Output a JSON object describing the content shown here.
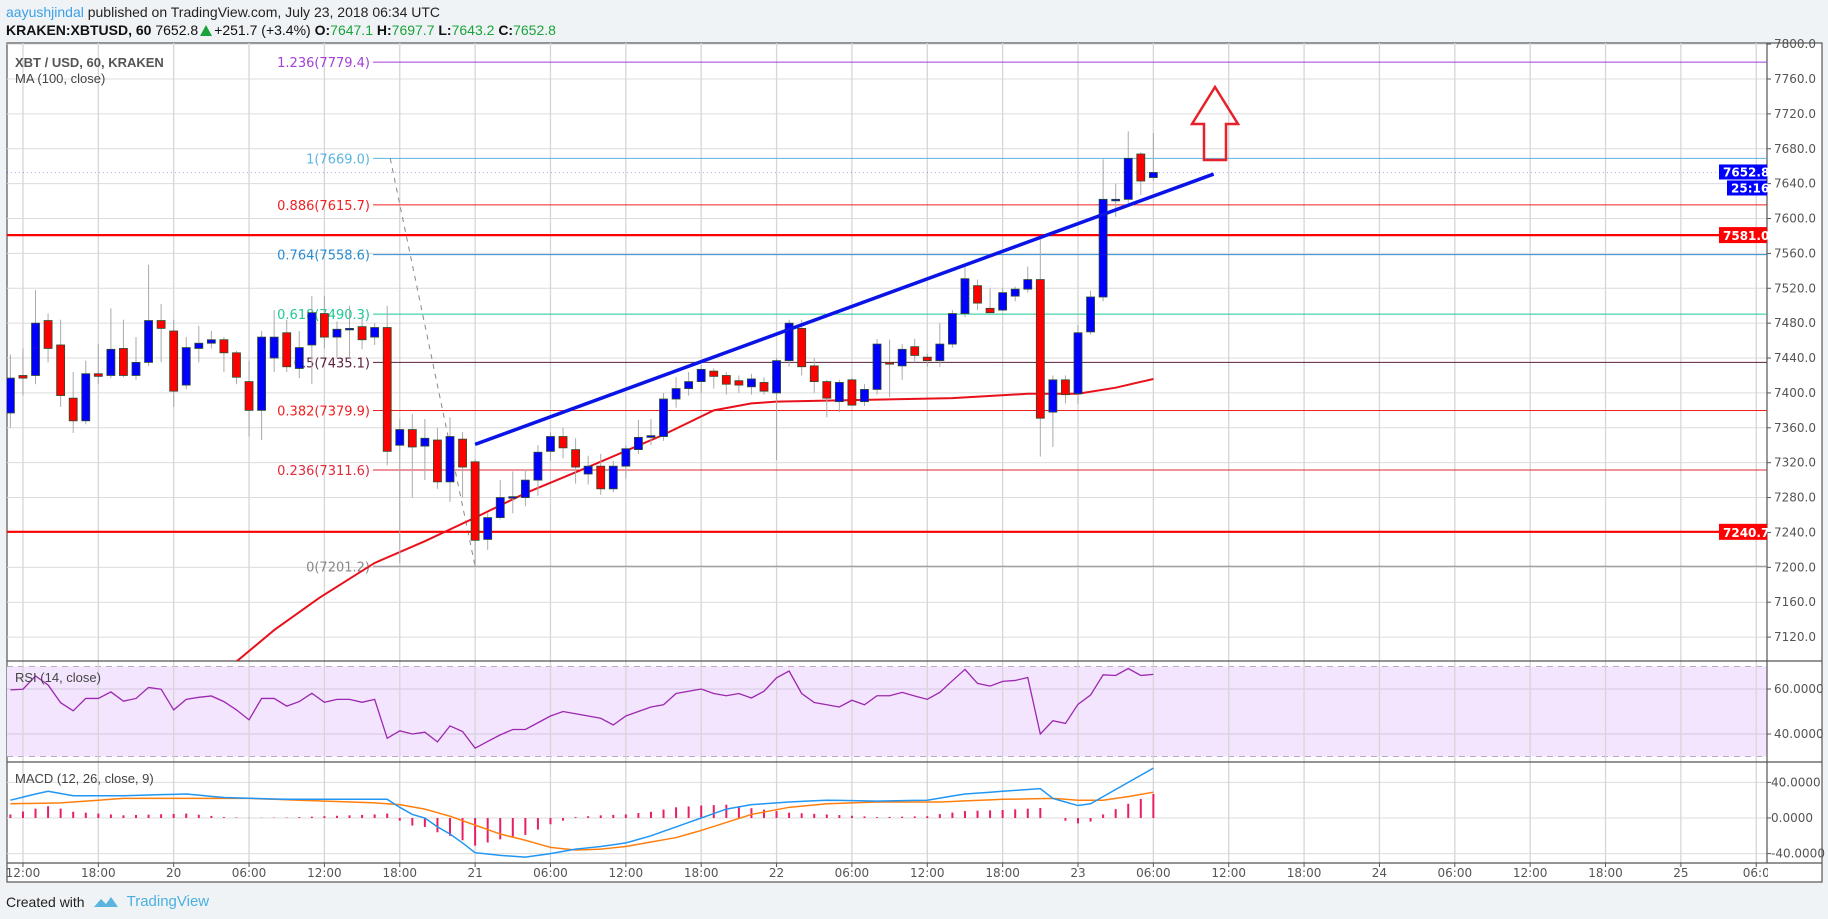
{
  "header": {
    "author": "aayushjindal",
    "published": "published on TradingView.com, July 23, 2018 06:34 UTC",
    "symbol": "KRAKEN:XBTUSD, 60",
    "last": "7652.8",
    "change": "+251.7 (+3.4%)",
    "o_label": "O:",
    "o": "7647.1",
    "h_label": "H:",
    "h": "7697.7",
    "l_label": "L:",
    "l": "7643.2",
    "c_label": "C:",
    "c": "7652.8"
  },
  "legend": {
    "title": "XBT / USD, 60, KRAKEN",
    "ma": "MA (100, close)",
    "rsi": "RSI (14, close)",
    "macd": "MACD (12, 26, close, 9)"
  },
  "footer": {
    "created_with": "Created with",
    "brand": "TradingView"
  },
  "chart_data": {
    "type": "candlestick",
    "interval": "60",
    "colors": {
      "up": "#0000ff",
      "down": "#ff0000",
      "ma": "#e8101a",
      "trend": "#0a14e6",
      "rsi": "#9c27b0",
      "macd": "#2196f3",
      "signal": "#ff7f0e",
      "hist": "#e91e63"
    },
    "time_labels": [
      "12:00",
      "18:00",
      "20",
      "06:00",
      "12:00",
      "18:00",
      "21",
      "06:00",
      "12:00",
      "18:00",
      "22",
      "06:00",
      "12:00",
      "18:00",
      "23",
      "06:00",
      "12:00",
      "18:00",
      "24",
      "06:00",
      "12:00",
      "18:00",
      "25",
      "06:0"
    ],
    "price_ticks": [
      7120,
      7160,
      7200,
      7240,
      7280,
      7320,
      7360,
      7400,
      7440,
      7480,
      7520,
      7560,
      7600,
      7640,
      7680,
      7720,
      7760,
      7800
    ],
    "ylim": [
      7092,
      7800
    ],
    "candles_ohlc": [
      [
        7377,
        7444,
        7360,
        7417
      ],
      [
        7420,
        7451,
        7397,
        7417
      ],
      [
        7420,
        7518,
        7410,
        7480
      ],
      [
        7483,
        7491,
        7435,
        7451
      ],
      [
        7455,
        7484,
        7384,
        7397
      ],
      [
        7394,
        7424,
        7354,
        7368
      ],
      [
        7368,
        7437,
        7364,
        7422
      ],
      [
        7422,
        7456,
        7410,
        7419
      ],
      [
        7420,
        7497,
        7417,
        7450
      ],
      [
        7451,
        7484,
        7418,
        7420
      ],
      [
        7420,
        7464,
        7415,
        7435
      ],
      [
        7435,
        7547,
        7431,
        7483
      ],
      [
        7483,
        7502,
        7435,
        7474
      ],
      [
        7471,
        7484,
        7384,
        7402
      ],
      [
        7409,
        7464,
        7404,
        7452
      ],
      [
        7451,
        7477,
        7435,
        7457
      ],
      [
        7457,
        7471,
        7451,
        7461
      ],
      [
        7461,
        7464,
        7424,
        7446
      ],
      [
        7446,
        7448,
        7410,
        7418
      ],
      [
        7413,
        7437,
        7350,
        7380
      ],
      [
        7380,
        7471,
        7346,
        7464
      ],
      [
        7440,
        7495,
        7424,
        7464
      ],
      [
        7469,
        7484,
        7424,
        7430
      ],
      [
        7428,
        7471,
        7417,
        7452
      ],
      [
        7455,
        7511,
        7410,
        7492
      ],
      [
        7491,
        7511,
        7451,
        7464
      ],
      [
        7464,
        7482,
        7440,
        7473
      ],
      [
        7474,
        7500,
        7440,
        7474
      ],
      [
        7476,
        7488,
        7450,
        7461
      ],
      [
        7464,
        7480,
        7455,
        7475
      ],
      [
        7475,
        7500,
        7317,
        7333
      ],
      [
        7340,
        7370,
        7205,
        7358
      ],
      [
        7358,
        7376,
        7280,
        7338
      ],
      [
        7339,
        7370,
        7300,
        7348
      ],
      [
        7346,
        7360,
        7290,
        7298
      ],
      [
        7298,
        7372,
        7275,
        7350
      ],
      [
        7347,
        7355,
        7280,
        7315
      ],
      [
        7321,
        7324,
        7201.2,
        7231
      ],
      [
        7232,
        7262,
        7220,
        7257
      ],
      [
        7257,
        7300,
        7255,
        7280
      ],
      [
        7280,
        7310,
        7262,
        7281
      ],
      [
        7280,
        7312,
        7270,
        7300
      ],
      [
        7300,
        7340,
        7282,
        7332
      ],
      [
        7333,
        7355,
        7322,
        7350
      ],
      [
        7350,
        7360,
        7325,
        7337
      ],
      [
        7335,
        7348,
        7296,
        7315
      ],
      [
        7307,
        7328,
        7295,
        7316
      ],
      [
        7316,
        7330,
        7283,
        7290
      ],
      [
        7290,
        7322,
        7286,
        7316
      ],
      [
        7316,
        7340,
        7302,
        7336
      ],
      [
        7335,
        7369,
        7330,
        7349
      ],
      [
        7349,
        7370,
        7340,
        7351
      ],
      [
        7350,
        7400,
        7345,
        7393
      ],
      [
        7393,
        7418,
        7383,
        7405
      ],
      [
        7405,
        7424,
        7397,
        7413
      ],
      [
        7413,
        7432,
        7400,
        7427
      ],
      [
        7425,
        7428,
        7405,
        7419
      ],
      [
        7420,
        7424,
        7398,
        7410
      ],
      [
        7414,
        7420,
        7400,
        7409
      ],
      [
        7407,
        7422,
        7398,
        7416
      ],
      [
        7412,
        7418,
        7398,
        7402
      ],
      [
        7400,
        7440,
        7323,
        7437
      ],
      [
        7437,
        7484,
        7430,
        7480
      ],
      [
        7474,
        7484,
        7420,
        7430
      ],
      [
        7431,
        7440,
        7400,
        7413
      ],
      [
        7413,
        7415,
        7372,
        7394
      ],
      [
        7390,
        7415,
        7378,
        7412
      ],
      [
        7415,
        7417,
        7385,
        7386
      ],
      [
        7390,
        7410,
        7385,
        7404
      ],
      [
        7404,
        7462,
        7398,
        7456
      ],
      [
        7435,
        7461,
        7395,
        7433
      ],
      [
        7431,
        7456,
        7415,
        7450
      ],
      [
        7453,
        7462,
        7435,
        7443
      ],
      [
        7441,
        7445,
        7430,
        7437
      ],
      [
        7437,
        7480,
        7430,
        7456
      ],
      [
        7456,
        7495,
        7452,
        7491
      ],
      [
        7491,
        7545,
        7487,
        7531
      ],
      [
        7523,
        7530,
        7495,
        7503
      ],
      [
        7497,
        7520,
        7492,
        7492
      ],
      [
        7495,
        7520,
        7494,
        7515
      ],
      [
        7511,
        7522,
        7505,
        7519
      ],
      [
        7519,
        7545,
        7515,
        7530
      ],
      [
        7530,
        7577,
        7327,
        7371
      ],
      [
        7378,
        7420,
        7338,
        7415
      ],
      [
        7415,
        7420,
        7388,
        7398
      ],
      [
        7399,
        7478,
        7387,
        7469
      ],
      [
        7470,
        7517,
        7467,
        7510
      ],
      [
        7510,
        7668,
        7505,
        7622
      ],
      [
        7622,
        7640,
        7602,
        7622
      ],
      [
        7622,
        7700,
        7618,
        7669
      ],
      [
        7674,
        7676,
        7627,
        7643
      ],
      [
        7647,
        7698,
        7643,
        7652.8
      ]
    ],
    "ma100_points": [
      [
        19,
        7092
      ],
      [
        22,
        7128
      ],
      [
        25.6,
        7165
      ],
      [
        30,
        7205
      ],
      [
        34,
        7230
      ],
      [
        38,
        7257
      ],
      [
        42,
        7285
      ],
      [
        47,
        7315
      ],
      [
        53,
        7352
      ],
      [
        57,
        7380
      ],
      [
        60,
        7388
      ],
      [
        62,
        7390
      ],
      [
        69,
        7392
      ],
      [
        76,
        7394
      ],
      [
        82,
        7399
      ],
      [
        86,
        7399
      ],
      [
        89,
        7406
      ],
      [
        92,
        7416
      ]
    ],
    "fib_levels": [
      {
        "ratio": "1.236",
        "price": 7779.4,
        "label": "1.236(7779.4)",
        "color": "#a23fd8"
      },
      {
        "ratio": "1",
        "price": 7669.0,
        "label": "1(7669.0)",
        "color": "#5ab4e0"
      },
      {
        "ratio": "0.886",
        "price": 7615.7,
        "label": "0.886(7615.7)",
        "color": "#f02020"
      },
      {
        "ratio": "0.764",
        "price": 7558.6,
        "label": "0.764(7558.6)",
        "color": "#2a8bd0"
      },
      {
        "ratio": "0.618",
        "price": 7490.3,
        "label": "0.618(7490.3)",
        "color": "#1fc896"
      },
      {
        "ratio": "0.5",
        "price": 7435.1,
        "label": "0.5(7435.1)",
        "color": "#5a1f3c"
      },
      {
        "ratio": "0.382",
        "price": 7379.9,
        "label": "0.382(7379.9)",
        "color": "#f02020"
      },
      {
        "ratio": "0.236",
        "price": 7311.6,
        "label": "0.236(7311.6)",
        "color": "#e02a3a"
      },
      {
        "ratio": "0",
        "price": 7201.2,
        "label": "0(7201.2)",
        "color": "#888888"
      }
    ],
    "fib_anchor": {
      "from": [
        31,
        7669.0
      ],
      "to": [
        38,
        7201.2
      ]
    },
    "horizontal_levels": [
      {
        "price": 7581.0,
        "label": "7581.0",
        "color": "#ff0000"
      },
      {
        "price": 7240.7,
        "label": "7240.7",
        "color": "#ff0000"
      }
    ],
    "trendline": {
      "from": [
        38,
        7341
      ],
      "to": [
        96.8,
        7651
      ]
    },
    "current_price": {
      "label": "7652.8",
      "countdown": "25:16",
      "price": 7652.8,
      "color": "#0000ff"
    },
    "rsi": {
      "ticks": [
        {
          "value": 60,
          "label": "60.0000"
        },
        {
          "value": 40,
          "label": "40.0000"
        }
      ],
      "bands": [
        70,
        30
      ],
      "values": [
        59.6,
        59.9,
        65.8,
        61.8,
        53.9,
        50.3,
        55.8,
        55.8,
        58.7,
        54.6,
        55.8,
        60.7,
        59.9,
        50.7,
        55.4,
        56.3,
        56.9,
        54.4,
        50.7,
        46.3,
        55.8,
        55.8,
        52.4,
        54.4,
        58.1,
        54.1,
        55.4,
        55.4,
        54.1,
        55.4,
        38.1,
        41.4,
        40.0,
        40.8,
        36.5,
        43.6,
        41.1,
        33.7,
        36.7,
        39.6,
        42,
        42,
        45,
        48,
        50,
        49,
        48,
        47,
        44,
        48,
        50,
        52,
        53,
        58,
        59,
        60,
        58,
        57,
        58,
        56,
        59,
        65,
        68,
        58,
        54,
        53,
        52,
        55,
        53,
        57,
        57,
        58.5,
        56.9,
        55.4,
        58.5,
        63.7,
        68.7,
        62.5,
        61.3,
        63.4,
        63.8,
        65.1,
        40.0,
        45.9,
        44.7,
        53.2,
        57.3,
        66.3,
        66.0,
        69.1,
        66.0,
        66.5
      ]
    },
    "macd": {
      "ticks": [
        {
          "value": 40,
          "label": "40.0000"
        },
        {
          "value": 0,
          "label": "0.0000"
        },
        {
          "value": -40,
          "label": "-40.0000"
        }
      ],
      "macd_points": [
        [
          1,
          20
        ],
        [
          3,
          27
        ],
        [
          4,
          30
        ],
        [
          6,
          25
        ],
        [
          10,
          25
        ],
        [
          15,
          27
        ],
        [
          18,
          23
        ],
        [
          23,
          21
        ],
        [
          31,
          21
        ],
        [
          32,
          12
        ],
        [
          33,
          4
        ],
        [
          34,
          0
        ],
        [
          35,
          -10
        ],
        [
          36,
          -18
        ],
        [
          37,
          -28
        ],
        [
          38,
          -39
        ],
        [
          40,
          -42
        ],
        [
          42,
          -44
        ],
        [
          44,
          -40
        ],
        [
          46,
          -35
        ],
        [
          48,
          -32
        ],
        [
          50,
          -28
        ],
        [
          52,
          -20
        ],
        [
          54,
          -10
        ],
        [
          56,
          0
        ],
        [
          58,
          10
        ],
        [
          60,
          15
        ],
        [
          63,
          18
        ],
        [
          66,
          20
        ],
        [
          70,
          19
        ],
        [
          74,
          20
        ],
        [
          77,
          27
        ],
        [
          81,
          31
        ],
        [
          83,
          33
        ],
        [
          84,
          22
        ],
        [
          86,
          14
        ],
        [
          87,
          16
        ],
        [
          88,
          24
        ],
        [
          90,
          40
        ],
        [
          92,
          56
        ]
      ],
      "signal_points": [
        [
          1,
          16
        ],
        [
          5,
          17
        ],
        [
          10,
          22
        ],
        [
          20,
          22
        ],
        [
          30,
          17
        ],
        [
          32,
          15
        ],
        [
          34,
          10
        ],
        [
          36,
          2
        ],
        [
          38,
          -8
        ],
        [
          40,
          -18
        ],
        [
          42,
          -25
        ],
        [
          44,
          -33
        ],
        [
          46,
          -36
        ],
        [
          48,
          -35
        ],
        [
          50,
          -32
        ],
        [
          52,
          -27
        ],
        [
          54,
          -22
        ],
        [
          56,
          -14
        ],
        [
          58,
          -5
        ],
        [
          60,
          4
        ],
        [
          63,
          12
        ],
        [
          66,
          16
        ],
        [
          70,
          18
        ],
        [
          75,
          18
        ],
        [
          80,
          21
        ],
        [
          84,
          22
        ],
        [
          86,
          20
        ],
        [
          88,
          20
        ],
        [
          90,
          24
        ],
        [
          92,
          29
        ]
      ]
    }
  }
}
